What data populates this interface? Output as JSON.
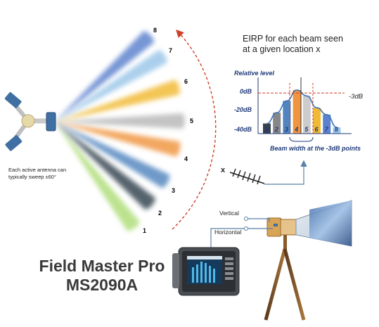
{
  "eirp_caption": [
    "EIRP for each beam seen",
    "at a given location x"
  ],
  "sweep_note": [
    "Each active antenna can",
    "typically sweep ±60°"
  ],
  "beam_numbers": [
    "1",
    "2",
    "3",
    "4",
    "5",
    "6",
    "7",
    "8"
  ],
  "beam_colors": [
    "#a6d96a",
    "#1f2d3a",
    "#3f78b8",
    "#ee8a2a",
    "#b0b0b0",
    "#efb21f",
    "#8ec0e6",
    "#4a73c8"
  ],
  "chart_data": {
    "type": "bar",
    "ylabel": "Relative level",
    "yticks": [
      "0dB",
      "-20dB",
      "-40dB"
    ],
    "ylim": [
      -40,
      0
    ],
    "threshold_label": "-3dB",
    "threshold_value": -3,
    "categories": [
      "1",
      "2",
      "3",
      "4",
      "5",
      "6",
      "7",
      "8"
    ],
    "values": [
      -34,
      -23,
      -11,
      0,
      -6,
      -18,
      -25,
      -38
    ],
    "colors": [
      "#1f2d3a",
      "#7a7a7a",
      "#3f78b8",
      "#ee8a2a",
      "#c6c6c6",
      "#efb21f",
      "#4a73c8",
      "#8ec0e6"
    ],
    "footnote": "Beam width at the -3dB points"
  },
  "location_label": "x",
  "antenna_labels": {
    "vertical": "Vertical",
    "horizontal": "Horizontal"
  },
  "product": {
    "line1": "Field Master Pro",
    "line2": "MS2090A"
  }
}
